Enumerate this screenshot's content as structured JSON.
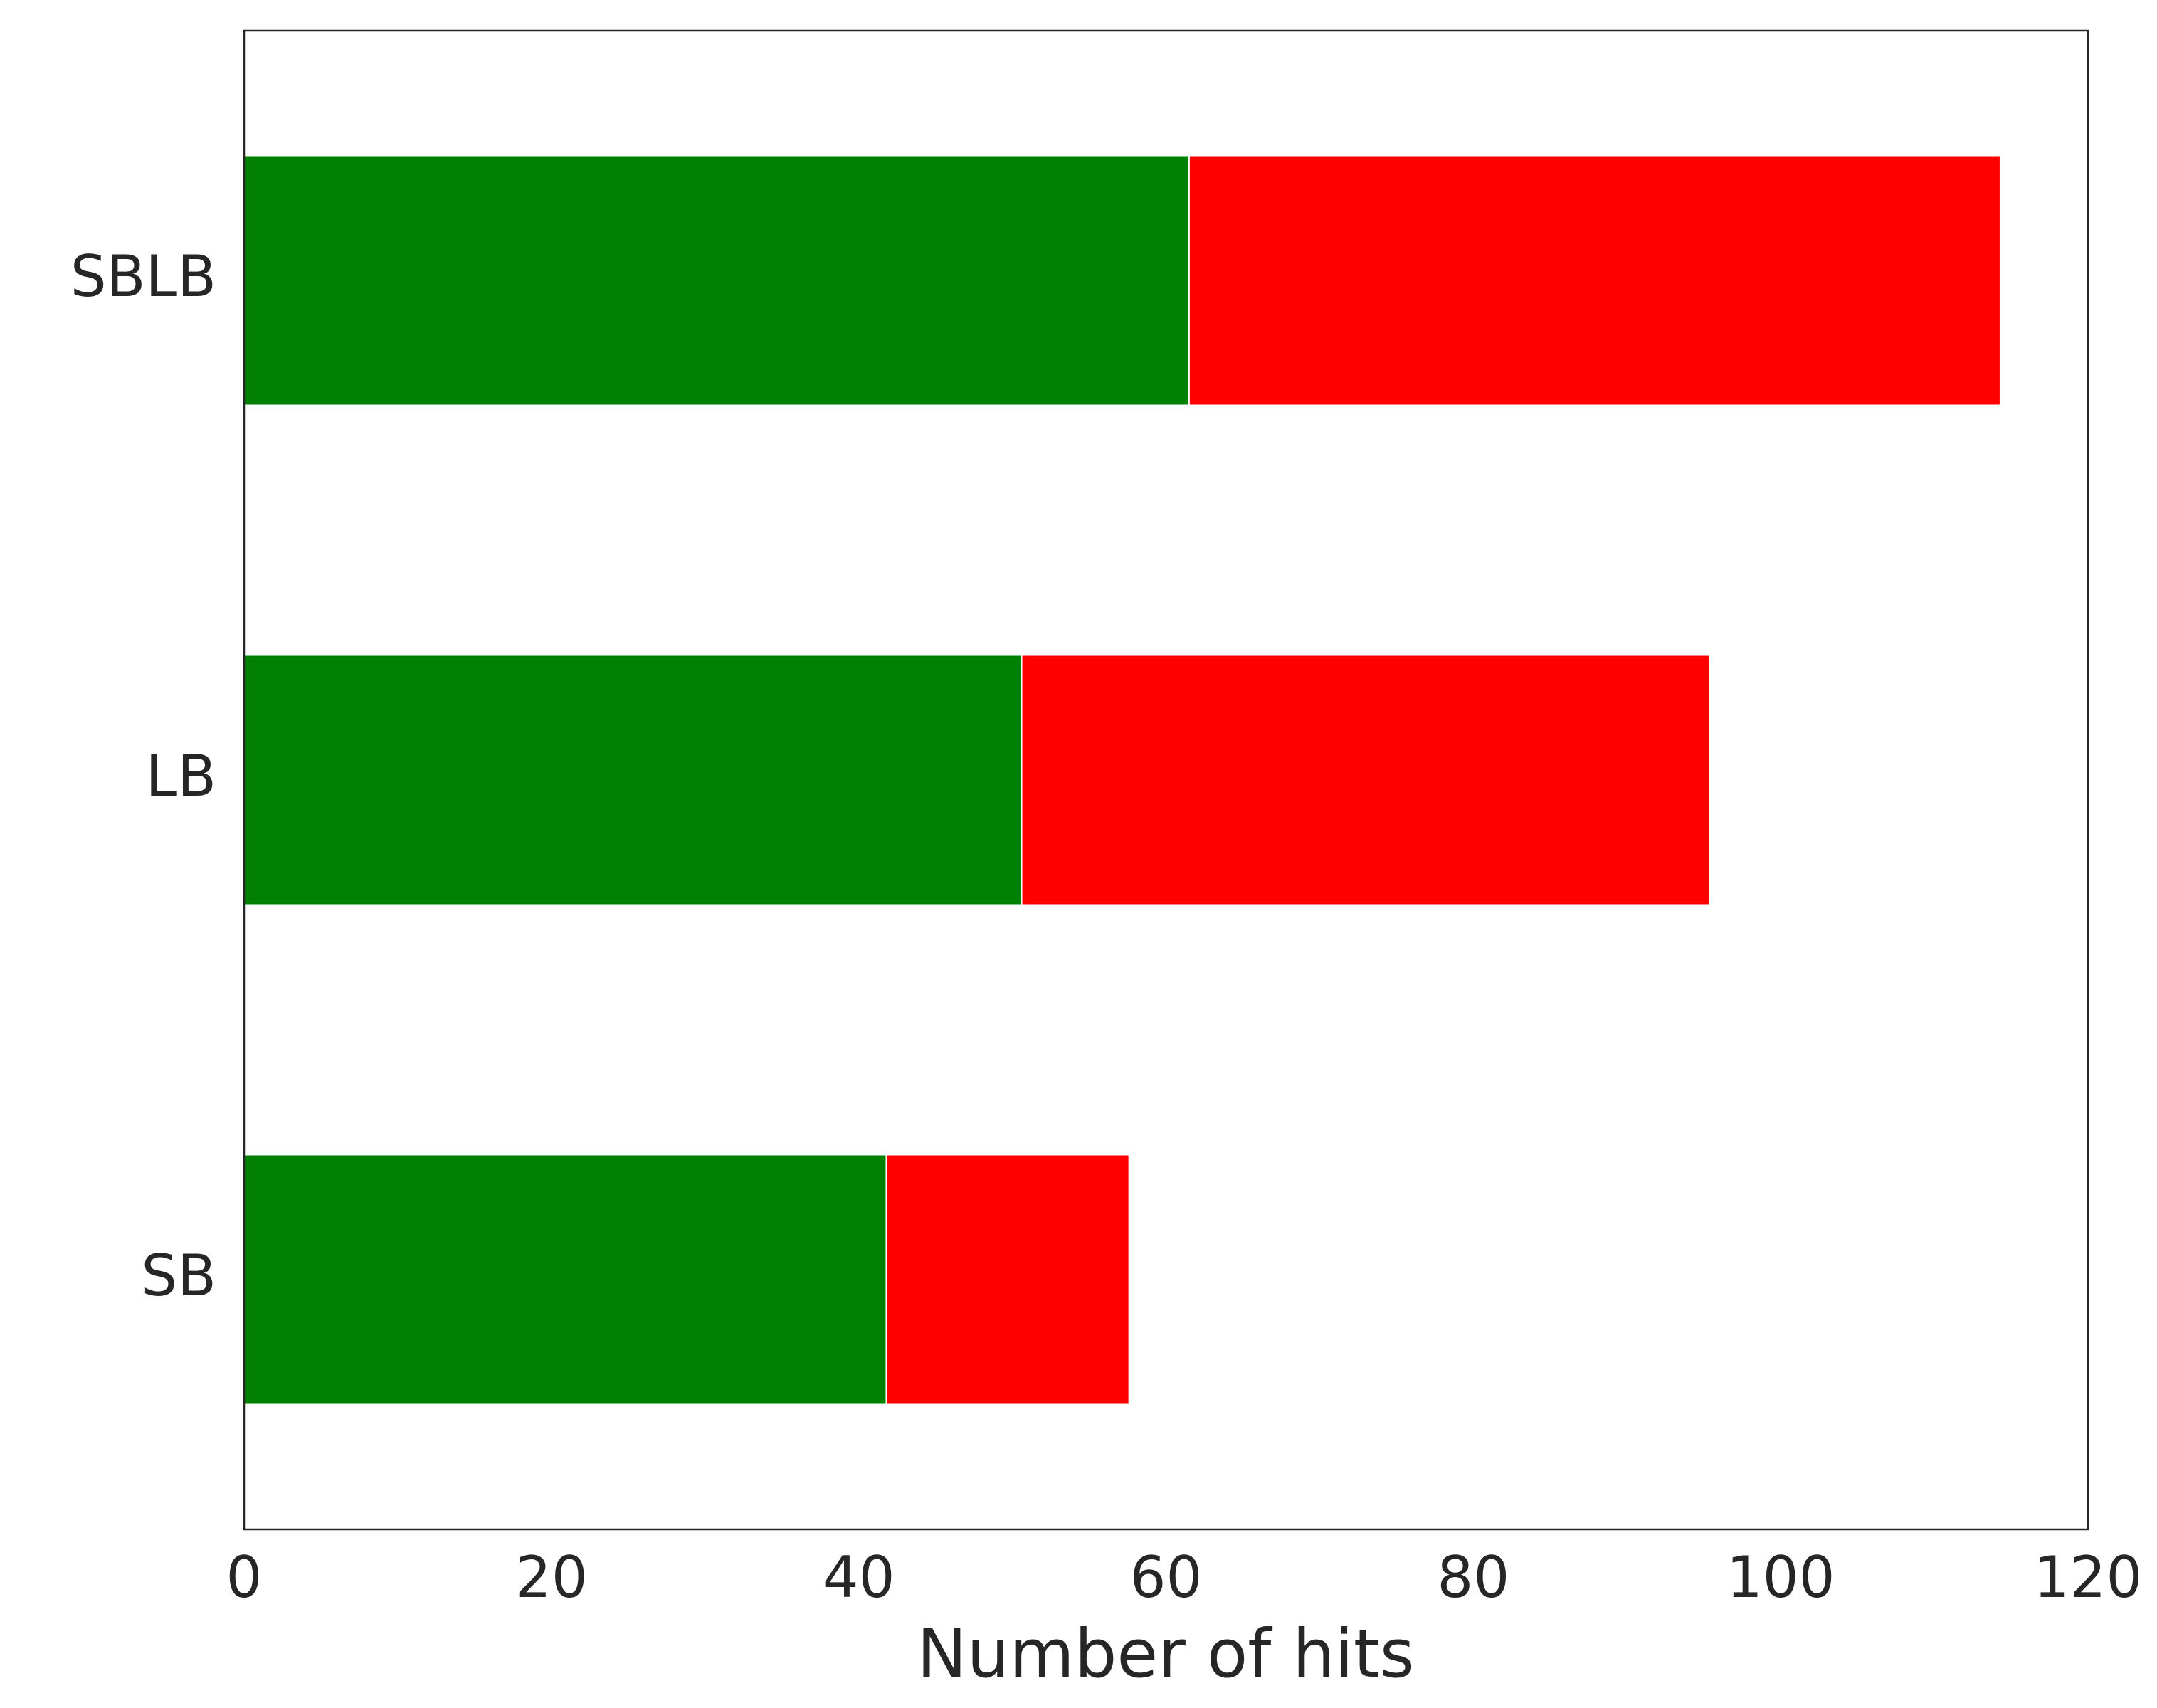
{
  "chart_data": {
    "type": "stacked_barh",
    "xlabel": "Number of hits",
    "categories": [
      "SB",
      "LB",
      "SBLB"
    ],
    "series": [
      {
        "color": "#008000",
        "values": [
          41.8,
          50.6,
          61.5
        ]
      },
      {
        "color": "#ff0000",
        "values": [
          15.8,
          44.8,
          52.8
        ]
      }
    ],
    "xlim": [
      0,
      120
    ],
    "xticks": [
      0,
      20,
      40,
      60,
      80,
      100,
      120
    ],
    "grid": false
  }
}
